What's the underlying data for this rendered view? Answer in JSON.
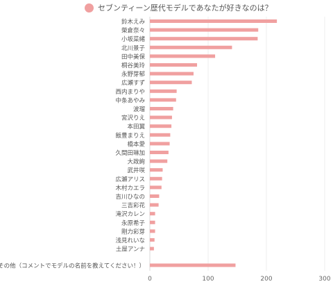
{
  "chart_data": {
    "type": "bar",
    "orientation": "horizontal",
    "legend_placement": "top",
    "grid": true,
    "xlim": [
      0,
      300
    ],
    "xticks": [
      "0",
      "100",
      "200",
      "300"
    ],
    "series": [
      {
        "name": "セブンティーン歴代モデルであなたが好きなのは？",
        "color": "#f0a0a0",
        "values": [
          218,
          186,
          185,
          141,
          112,
          81,
          75,
          72,
          46,
          45,
          40,
          38,
          37,
          35,
          34,
          32,
          30,
          22,
          21,
          20,
          16,
          15,
          9,
          9,
          9,
          8,
          7,
          147
        ]
      }
    ],
    "categories": [
      "鈴木えみ",
      "榮倉奈々",
      "小坂菜緒",
      "北川景子",
      "田中美保",
      "桐谷美玲",
      "永野芽郁",
      "広瀬すず",
      "西内まりや",
      "中条あやみ",
      "波瑠",
      "宮沢りえ",
      "本田翼",
      "飯豊まりえ",
      "橋本愛",
      "久間田琳加",
      "大政絢",
      "武井咲",
      "広瀬アリス",
      "木村カエラ",
      "吉川ひなの",
      "三吉彩花",
      "滝沢カレン",
      "永原希子",
      "剛力彩芽",
      "浅見れいな",
      "土屋アンナ",
      "その他（コメントでモデルの名前を教えてください！）"
    ]
  }
}
